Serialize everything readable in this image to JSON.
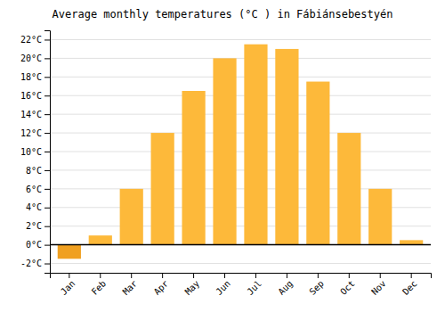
{
  "chart_data": {
    "type": "bar",
    "title": "Average monthly temperatures (°C ) in Fábiánsebestyén",
    "categories": [
      "Jan",
      "Feb",
      "Mar",
      "Apr",
      "May",
      "Jun",
      "Jul",
      "Aug",
      "Sep",
      "Oct",
      "Nov",
      "Dec"
    ],
    "values": [
      -1.5,
      1.0,
      6.0,
      12.0,
      16.5,
      20.0,
      21.5,
      21.0,
      17.5,
      12.0,
      6.0,
      0.5
    ],
    "colors": [
      "#F0A020",
      "#FDB93A",
      "#FDB93A",
      "#FDB93A",
      "#FDB93A",
      "#FDB93A",
      "#FDB93A",
      "#FDB93A",
      "#FDB93A",
      "#FDB93A",
      "#FDB93A",
      "#FDB93A"
    ],
    "ylim": [
      -3,
      23
    ],
    "yticks": [
      {
        "value": -2,
        "label": "-2°C"
      },
      {
        "value": 0,
        "label": "0°C"
      },
      {
        "value": 2,
        "label": "2°C"
      },
      {
        "value": 4,
        "label": "4°C"
      },
      {
        "value": 6,
        "label": "6°C"
      },
      {
        "value": 8,
        "label": "8°C"
      },
      {
        "value": 10,
        "label": "10°C"
      },
      {
        "value": 12,
        "label": "12°C"
      },
      {
        "value": 14,
        "label": "14°C"
      },
      {
        "value": 16,
        "label": "16°C"
      },
      {
        "value": 18,
        "label": "18°C"
      },
      {
        "value": 20,
        "label": "20°C"
      },
      {
        "value": 22,
        "label": "22°C"
      }
    ],
    "grid": true
  }
}
